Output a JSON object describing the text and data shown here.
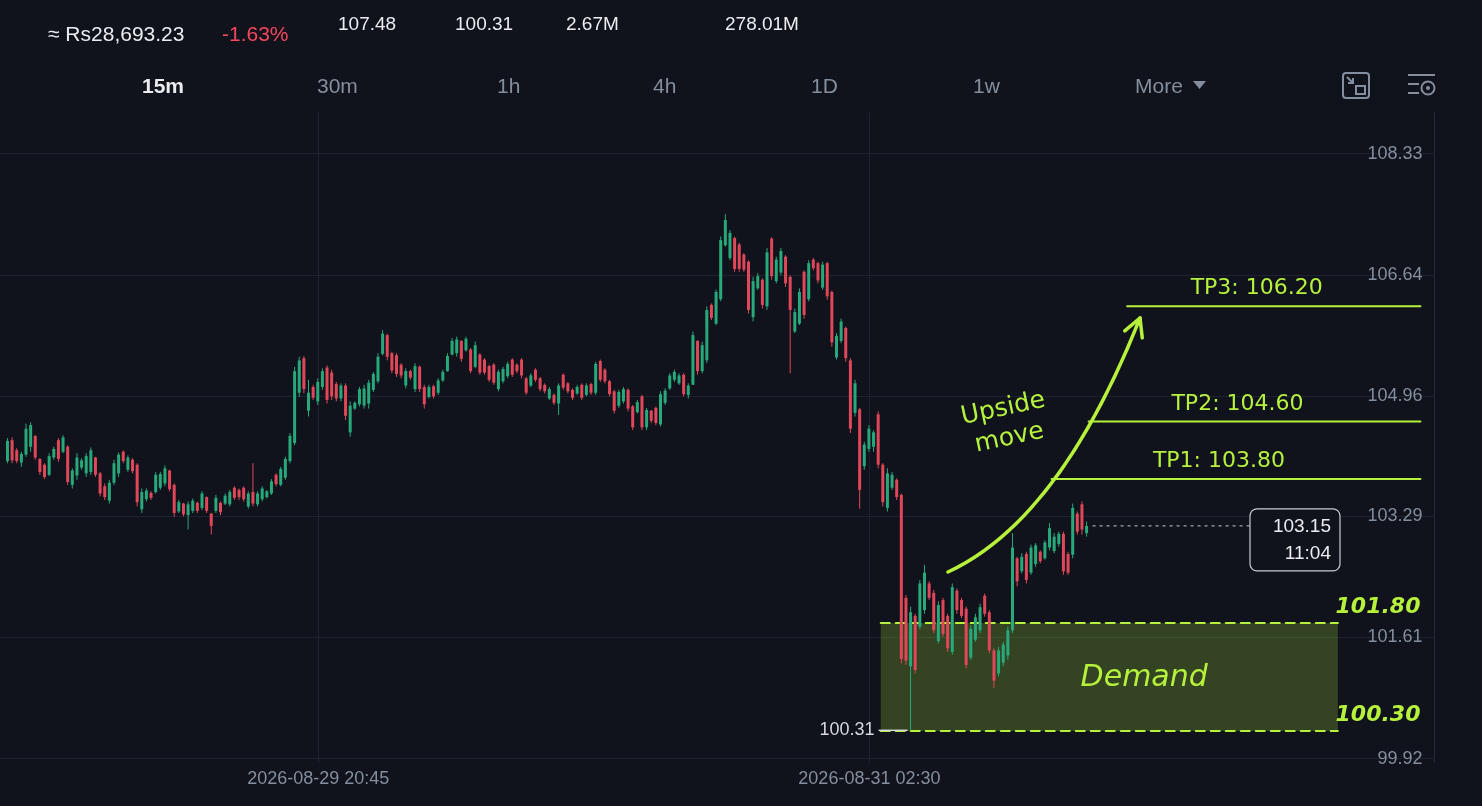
{
  "chart_data": {
    "type": "candlestick",
    "x": [
      "2026-08-29T04:00",
      "2026-08-29T04:15",
      "2026-08-29T04:30",
      "2026-08-29T04:45",
      "2026-08-29T05:00",
      "2026-08-29T05:15",
      "2026-08-29T05:30",
      "2026-08-29T05:45",
      "2026-08-29T06:00",
      "2026-08-29T06:15",
      "2026-08-29T06:30",
      "2026-08-29T06:45",
      "2026-08-29T07:00",
      "2026-08-29T07:15",
      "2026-08-29T07:30",
      "2026-08-29T07:45",
      "2026-08-29T08:00",
      "2026-08-29T08:15",
      "2026-08-29T08:30",
      "2026-08-29T08:45",
      "2026-08-29T09:00",
      "2026-08-29T09:15",
      "2026-08-29T09:30",
      "2026-08-29T09:45",
      "2026-08-29T10:00",
      "2026-08-29T10:15",
      "2026-08-29T10:30",
      "2026-08-29T10:45",
      "2026-08-29T11:00",
      "2026-08-29T11:15",
      "2026-08-29T11:30",
      "2026-08-29T11:45",
      "2026-08-29T12:00",
      "2026-08-29T12:15",
      "2026-08-29T12:30",
      "2026-08-29T12:45",
      "2026-08-29T13:00",
      "2026-08-29T13:15",
      "2026-08-29T13:30",
      "2026-08-29T13:45",
      "2026-08-29T14:00",
      "2026-08-29T14:15",
      "2026-08-29T14:30",
      "2026-08-29T14:45",
      "2026-08-29T15:00",
      "2026-08-29T15:15",
      "2026-08-29T15:30",
      "2026-08-29T15:45",
      "2026-08-29T16:00",
      "2026-08-29T16:15",
      "2026-08-29T16:30",
      "2026-08-29T16:45",
      "2026-08-29T17:00",
      "2026-08-29T17:15",
      "2026-08-29T17:30",
      "2026-08-29T17:45",
      "2026-08-29T18:00",
      "2026-08-29T18:15",
      "2026-08-29T18:30",
      "2026-08-29T18:45",
      "2026-08-29T19:00",
      "2026-08-29T19:15",
      "2026-08-29T19:30",
      "2026-08-29T19:45",
      "2026-08-29T20:00",
      "2026-08-29T20:15",
      "2026-08-29T20:30",
      "2026-08-29T20:45",
      "2026-08-29T21:00",
      "2026-08-29T21:15",
      "2026-08-29T21:30",
      "2026-08-29T21:45",
      "2026-08-29T22:00",
      "2026-08-29T22:15",
      "2026-08-29T22:30",
      "2026-08-29T22:45",
      "2026-08-29T23:00",
      "2026-08-29T23:15",
      "2026-08-29T23:30",
      "2026-08-29T23:45",
      "2026-08-30T00:00",
      "2026-08-30T00:15",
      "2026-08-30T00:30",
      "2026-08-30T00:45",
      "2026-08-30T01:00",
      "2026-08-30T01:15",
      "2026-08-30T01:30",
      "2026-08-30T01:45",
      "2026-08-30T02:00",
      "2026-08-30T02:15",
      "2026-08-30T02:30",
      "2026-08-30T02:45",
      "2026-08-30T03:00",
      "2026-08-30T03:15",
      "2026-08-30T03:30",
      "2026-08-30T03:45",
      "2026-08-30T04:00",
      "2026-08-30T04:15",
      "2026-08-30T04:30",
      "2026-08-30T04:45",
      "2026-08-30T05:00",
      "2026-08-30T05:15",
      "2026-08-30T05:30",
      "2026-08-30T05:45",
      "2026-08-30T06:00",
      "2026-08-30T06:15",
      "2026-08-30T06:30",
      "2026-08-30T06:45",
      "2026-08-30T07:00",
      "2026-08-30T07:15",
      "2026-08-30T07:30",
      "2026-08-30T07:45",
      "2026-08-30T08:00",
      "2026-08-30T08:15",
      "2026-08-30T08:30",
      "2026-08-30T08:45",
      "2026-08-30T09:00",
      "2026-08-30T09:15",
      "2026-08-30T09:30",
      "2026-08-30T09:45",
      "2026-08-30T10:00",
      "2026-08-30T10:15",
      "2026-08-30T10:30",
      "2026-08-30T10:45",
      "2026-08-30T11:00",
      "2026-08-30T11:15",
      "2026-08-30T11:30",
      "2026-08-30T11:45",
      "2026-08-30T12:00",
      "2026-08-30T12:15",
      "2026-08-30T12:30",
      "2026-08-30T12:45",
      "2026-08-30T13:00",
      "2026-08-30T13:15",
      "2026-08-30T13:30",
      "2026-08-30T13:45",
      "2026-08-30T14:00",
      "2026-08-30T14:15",
      "2026-08-30T14:30",
      "2026-08-30T14:45",
      "2026-08-30T15:00",
      "2026-08-30T15:15",
      "2026-08-30T15:30",
      "2026-08-30T15:45",
      "2026-08-30T16:00",
      "2026-08-30T16:15",
      "2026-08-30T16:30",
      "2026-08-30T16:45",
      "2026-08-30T17:00",
      "2026-08-30T17:15",
      "2026-08-30T17:30",
      "2026-08-30T17:45",
      "2026-08-30T18:00",
      "2026-08-30T18:15",
      "2026-08-30T18:30",
      "2026-08-30T18:45",
      "2026-08-30T19:00",
      "2026-08-30T19:15",
      "2026-08-30T19:30",
      "2026-08-30T19:45",
      "2026-08-30T20:00",
      "2026-08-30T20:15",
      "2026-08-30T20:30",
      "2026-08-30T20:45",
      "2026-08-30T21:00",
      "2026-08-30T21:15",
      "2026-08-30T21:30",
      "2026-08-30T21:45",
      "2026-08-30T22:00",
      "2026-08-30T22:15",
      "2026-08-30T22:30",
      "2026-08-30T22:45",
      "2026-08-30T23:00",
      "2026-08-30T23:15",
      "2026-08-30T23:30",
      "2026-08-30T23:45",
      "2026-08-31T00:00",
      "2026-08-31T00:15",
      "2026-08-31T00:30",
      "2026-08-31T00:45",
      "2026-08-31T01:00",
      "2026-08-31T01:15",
      "2026-08-31T01:30",
      "2026-08-31T01:45",
      "2026-08-31T02:00",
      "2026-08-31T02:15",
      "2026-08-31T02:30",
      "2026-08-31T02:45",
      "2026-08-31T03:00",
      "2026-08-31T03:15",
      "2026-08-31T03:30",
      "2026-08-31T03:45",
      "2026-08-31T04:00",
      "2026-08-31T04:15",
      "2026-08-31T04:30",
      "2026-08-31T04:45",
      "2026-08-31T05:00",
      "2026-08-31T05:15",
      "2026-08-31T05:30",
      "2026-08-31T05:45",
      "2026-08-31T06:00",
      "2026-08-31T06:15",
      "2026-08-31T06:30",
      "2026-08-31T06:45",
      "2026-08-31T07:00",
      "2026-08-31T07:15",
      "2026-08-31T07:30",
      "2026-08-31T07:45",
      "2026-08-31T08:00",
      "2026-08-31T08:15",
      "2026-08-31T08:30",
      "2026-08-31T08:45",
      "2026-08-31T09:00",
      "2026-08-31T09:15",
      "2026-08-31T09:30",
      "2026-08-31T09:45",
      "2026-08-31T10:00",
      "2026-08-31T10:15",
      "2026-08-31T10:30",
      "2026-08-31T10:45",
      "2026-08-31T11:00",
      "2026-08-31T11:15",
      "2026-08-31T11:30",
      "2026-08-31T11:45",
      "2026-08-31T12:00",
      "2026-08-31T12:15",
      "2026-08-31T12:30",
      "2026-08-31T12:45",
      "2026-08-31T13:00",
      "2026-08-31T13:15",
      "2026-08-31T13:30",
      "2026-08-31T13:45",
      "2026-08-31T14:00",
      "2026-08-31T14:15"
    ],
    "ohlc": [
      [
        104.05,
        104.37,
        104.02,
        104.33
      ],
      [
        104.34,
        104.38,
        104.02,
        104.06
      ],
      [
        104.2,
        104.23,
        104.02,
        104.05
      ],
      [
        104.03,
        104.18,
        103.97,
        104.15
      ],
      [
        104.14,
        104.57,
        104.11,
        104.5
      ],
      [
        104.25,
        104.59,
        104.18,
        104.55
      ],
      [
        104.4,
        104.41,
        104.07,
        104.1
      ],
      [
        104.08,
        104.09,
        103.86,
        103.9
      ],
      [
        104.0,
        104.02,
        103.8,
        103.83
      ],
      [
        103.86,
        104.16,
        103.84,
        104.12
      ],
      [
        104.1,
        104.25,
        104.07,
        104.22
      ],
      [
        104.34,
        104.37,
        104.04,
        104.08
      ],
      [
        104.18,
        104.41,
        104.16,
        104.38
      ],
      [
        104.25,
        104.27,
        103.72,
        103.76
      ],
      [
        103.72,
        103.95,
        103.67,
        103.92
      ],
      [
        103.85,
        104.16,
        103.79,
        104.1
      ],
      [
        103.96,
        104.09,
        103.93,
        104.06
      ],
      [
        103.88,
        104.16,
        103.83,
        104.12
      ],
      [
        103.9,
        104.24,
        103.86,
        104.2
      ],
      [
        104.1,
        104.11,
        103.83,
        103.86
      ],
      [
        103.88,
        103.9,
        103.56,
        103.6
      ],
      [
        103.7,
        103.74,
        103.51,
        103.55
      ],
      [
        103.5,
        103.79,
        103.46,
        103.75
      ],
      [
        103.75,
        104.07,
        103.72,
        104.02
      ],
      [
        103.88,
        104.17,
        103.83,
        104.14
      ],
      [
        104.18,
        104.2,
        104.02,
        104.05
      ],
      [
        103.93,
        104.13,
        103.9,
        104.1
      ],
      [
        104.07,
        104.09,
        103.88,
        103.91
      ],
      [
        104.0,
        104.02,
        103.42,
        103.48
      ],
      [
        103.38,
        103.67,
        103.33,
        103.62
      ],
      [
        103.52,
        103.67,
        103.49,
        103.64
      ],
      [
        103.61,
        103.63,
        103.51,
        103.54
      ],
      [
        103.62,
        103.9,
        103.6,
        103.86
      ],
      [
        103.68,
        103.9,
        103.65,
        103.87
      ],
      [
        103.74,
        103.99,
        103.7,
        103.95
      ],
      [
        103.92,
        103.93,
        103.63,
        103.66
      ],
      [
        103.72,
        103.74,
        103.28,
        103.33
      ],
      [
        103.35,
        103.51,
        103.33,
        103.48
      ],
      [
        103.46,
        103.47,
        103.28,
        103.31
      ],
      [
        103.3,
        103.49,
        103.1,
        103.45
      ],
      [
        103.36,
        103.53,
        103.33,
        103.5
      ],
      [
        103.47,
        103.49,
        103.33,
        103.36
      ],
      [
        103.4,
        103.63,
        103.37,
        103.6
      ],
      [
        103.55,
        103.56,
        103.33,
        103.36
      ],
      [
        103.32,
        103.33,
        103.03,
        103.15
      ],
      [
        103.36,
        103.58,
        103.33,
        103.54
      ],
      [
        103.47,
        103.49,
        103.3,
        103.34
      ],
      [
        103.46,
        103.6,
        103.44,
        103.57
      ],
      [
        103.45,
        103.65,
        103.42,
        103.62
      ],
      [
        103.68,
        103.7,
        103.51,
        103.54
      ],
      [
        103.65,
        103.67,
        103.51,
        103.55
      ],
      [
        103.68,
        103.7,
        103.49,
        103.52
      ],
      [
        103.42,
        103.63,
        103.39,
        103.6
      ],
      [
        103.62,
        104.02,
        103.42,
        103.46
      ],
      [
        103.45,
        103.63,
        103.42,
        103.6
      ],
      [
        103.52,
        103.7,
        103.49,
        103.67
      ],
      [
        103.55,
        103.65,
        103.53,
        103.63
      ],
      [
        103.6,
        103.8,
        103.58,
        103.77
      ],
      [
        103.86,
        103.88,
        103.7,
        103.73
      ],
      [
        103.72,
        103.97,
        103.7,
        103.94
      ],
      [
        103.82,
        104.11,
        103.79,
        104.08
      ],
      [
        104.05,
        104.44,
        104.02,
        104.4
      ],
      [
        104.3,
        105.36,
        104.27,
        105.3
      ],
      [
        105.0,
        105.5,
        104.94,
        105.45
      ],
      [
        105.48,
        105.51,
        104.99,
        105.05
      ],
      [
        104.75,
        105.18,
        104.67,
        105.0
      ],
      [
        105.08,
        105.11,
        104.9,
        104.93
      ],
      [
        104.88,
        105.2,
        104.83,
        105.15
      ],
      [
        105.08,
        105.34,
        105.04,
        105.3
      ],
      [
        105.35,
        105.38,
        104.85,
        104.9
      ],
      [
        105.28,
        105.32,
        104.9,
        104.95
      ],
      [
        105.12,
        105.15,
        104.88,
        104.92
      ],
      [
        104.92,
        105.13,
        104.88,
        105.1
      ],
      [
        105.1,
        105.13,
        104.62,
        104.68
      ],
      [
        104.45,
        104.88,
        104.39,
        104.82
      ],
      [
        104.78,
        104.88,
        104.76,
        104.86
      ],
      [
        104.84,
        105.08,
        104.81,
        105.05
      ],
      [
        104.82,
        105.11,
        104.78,
        105.06
      ],
      [
        104.85,
        105.18,
        104.78,
        105.14
      ],
      [
        105.04,
        105.29,
        105.01,
        105.26
      ],
      [
        105.16,
        105.55,
        105.13,
        105.5
      ],
      [
        105.54,
        105.87,
        105.52,
        105.82
      ],
      [
        105.8,
        105.82,
        105.45,
        105.5
      ],
      [
        105.55,
        105.57,
        105.27,
        105.31
      ],
      [
        105.52,
        105.55,
        105.22,
        105.26
      ],
      [
        105.39,
        105.41,
        105.2,
        105.24
      ],
      [
        105.1,
        105.34,
        105.06,
        105.3
      ],
      [
        105.3,
        105.32,
        105.18,
        105.21
      ],
      [
        105.05,
        105.41,
        105.01,
        105.37
      ],
      [
        105.36,
        105.38,
        105.01,
        105.05
      ],
      [
        105.08,
        105.11,
        104.78,
        104.84
      ],
      [
        104.94,
        105.11,
        104.92,
        105.08
      ],
      [
        105.09,
        105.11,
        104.92,
        104.95
      ],
      [
        105.0,
        105.2,
        104.97,
        105.17
      ],
      [
        105.17,
        105.32,
        105.15,
        105.29
      ],
      [
        105.3,
        105.55,
        105.29,
        105.51
      ],
      [
        105.53,
        105.76,
        105.52,
        105.72
      ],
      [
        105.55,
        105.78,
        105.5,
        105.74
      ],
      [
        105.72,
        105.73,
        105.43,
        105.47
      ],
      [
        105.59,
        105.78,
        105.57,
        105.75
      ],
      [
        105.6,
        105.62,
        105.27,
        105.3
      ],
      [
        105.36,
        105.71,
        105.34,
        105.66
      ],
      [
        105.53,
        105.55,
        105.25,
        105.28
      ],
      [
        105.46,
        105.48,
        105.25,
        105.28
      ],
      [
        105.37,
        105.39,
        105.15,
        105.18
      ],
      [
        105.39,
        105.41,
        105.11,
        105.14
      ],
      [
        105.05,
        105.32,
        105.02,
        105.29
      ],
      [
        105.16,
        105.36,
        105.13,
        105.33
      ],
      [
        105.23,
        105.43,
        105.2,
        105.4
      ],
      [
        105.46,
        105.48,
        105.22,
        105.25
      ],
      [
        105.39,
        105.41,
        105.27,
        105.3
      ],
      [
        105.46,
        105.48,
        105.2,
        105.24
      ],
      [
        105.2,
        105.22,
        104.97,
        105.0
      ],
      [
        105.1,
        105.27,
        105.08,
        105.24
      ],
      [
        105.32,
        105.34,
        105.15,
        105.18
      ],
      [
        105.2,
        105.22,
        105.02,
        105.05
      ],
      [
        105.11,
        105.13,
        104.99,
        105.02
      ],
      [
        104.92,
        105.08,
        104.9,
        105.05
      ],
      [
        104.97,
        104.99,
        104.83,
        104.86
      ],
      [
        104.85,
        105.13,
        104.69,
        105.1
      ],
      [
        105.25,
        105.27,
        105.04,
        105.07
      ],
      [
        105.13,
        105.15,
        104.99,
        105.02
      ],
      [
        105.04,
        105.06,
        104.9,
        104.93
      ],
      [
        104.99,
        105.11,
        104.97,
        105.08
      ],
      [
        105.11,
        105.13,
        104.9,
        104.93
      ],
      [
        104.97,
        105.13,
        104.95,
        105.1
      ],
      [
        105.12,
        105.14,
        104.97,
        105.0
      ],
      [
        105.0,
        105.43,
        104.97,
        105.4
      ],
      [
        105.44,
        105.46,
        105.15,
        105.18
      ],
      [
        105.32,
        105.34,
        105.13,
        105.16
      ],
      [
        105.16,
        105.18,
        104.95,
        104.98
      ],
      [
        105.02,
        105.04,
        104.71,
        104.75
      ],
      [
        104.82,
        105.04,
        104.79,
        105.01
      ],
      [
        104.88,
        105.08,
        104.85,
        105.05
      ],
      [
        105.04,
        105.06,
        104.74,
        104.78
      ],
      [
        104.81,
        104.83,
        104.48,
        104.52
      ],
      [
        104.73,
        104.9,
        104.71,
        104.87
      ],
      [
        104.95,
        104.97,
        104.48,
        104.52
      ],
      [
        104.52,
        104.79,
        104.48,
        104.76
      ],
      [
        104.75,
        104.76,
        104.58,
        104.61
      ],
      [
        104.79,
        104.81,
        104.55,
        104.58
      ],
      [
        104.56,
        105.02,
        104.53,
        104.98
      ],
      [
        104.86,
        105.06,
        104.83,
        105.03
      ],
      [
        105.06,
        105.27,
        105.04,
        105.24
      ],
      [
        105.18,
        105.32,
        105.15,
        105.29
      ],
      [
        105.13,
        105.27,
        105.11,
        105.24
      ],
      [
        105.25,
        105.27,
        104.95,
        104.98
      ],
      [
        104.97,
        105.13,
        104.92,
        105.1
      ],
      [
        105.11,
        105.85,
        105.11,
        105.8
      ],
      [
        105.72,
        105.73,
        105.25,
        105.3
      ],
      [
        105.3,
        105.71,
        105.27,
        105.66
      ],
      [
        105.45,
        106.2,
        105.41,
        106.15
      ],
      [
        106.22,
        106.24,
        106.01,
        106.04
      ],
      [
        105.96,
        106.43,
        105.94,
        106.4
      ],
      [
        106.3,
        107.17,
        106.27,
        107.12
      ],
      [
        107.05,
        107.48,
        107.03,
        107.4
      ],
      [
        106.87,
        107.26,
        106.84,
        107.22
      ],
      [
        107.15,
        107.17,
        106.68,
        106.72
      ],
      [
        107.06,
        107.08,
        106.68,
        106.72
      ],
      [
        106.92,
        106.94,
        106.68,
        106.71
      ],
      [
        106.82,
        106.84,
        106.1,
        106.15
      ],
      [
        106.05,
        106.61,
        105.99,
        106.55
      ],
      [
        106.45,
        106.66,
        106.43,
        106.62
      ],
      [
        106.57,
        106.59,
        106.17,
        106.22
      ],
      [
        106.2,
        107.01,
        106.15,
        106.95
      ],
      [
        107.14,
        107.16,
        106.57,
        106.62
      ],
      [
        106.55,
        106.89,
        106.52,
        106.85
      ],
      [
        106.67,
        107.01,
        106.63,
        106.97
      ],
      [
        106.89,
        106.91,
        106.47,
        106.52
      ],
      [
        106.61,
        106.63,
        105.27,
        106.15
      ],
      [
        105.85,
        106.17,
        105.83,
        106.12
      ],
      [
        105.96,
        106.45,
        105.94,
        106.4
      ],
      [
        106.68,
        106.7,
        106.03,
        106.08
      ],
      [
        106.3,
        106.84,
        106.27,
        106.8
      ],
      [
        106.85,
        106.87,
        106.7,
        106.73
      ],
      [
        106.8,
        106.82,
        106.52,
        106.56
      ],
      [
        106.46,
        106.82,
        106.43,
        106.78
      ],
      [
        106.8,
        106.82,
        106.29,
        106.34
      ],
      [
        106.4,
        106.42,
        105.64,
        105.7
      ],
      [
        105.49,
        105.83,
        105.46,
        105.79
      ],
      [
        105.72,
        106.03,
        105.69,
        105.99
      ],
      [
        105.9,
        105.92,
        105.43,
        105.48
      ],
      [
        105.45,
        105.48,
        104.44,
        104.5
      ],
      [
        104.72,
        105.18,
        104.67,
        105.13
      ],
      [
        104.77,
        104.79,
        103.39,
        103.65
      ],
      [
        103.98,
        104.32,
        103.93,
        104.28
      ],
      [
        104.22,
        104.55,
        104.18,
        104.5
      ],
      [
        104.25,
        104.48,
        104.18,
        104.45
      ],
      [
        104.7,
        104.74,
        103.95,
        104.0
      ],
      [
        104.0,
        104.02,
        103.42,
        103.48
      ],
      [
        103.4,
        103.95,
        103.35,
        103.88
      ],
      [
        103.68,
        103.9,
        103.65,
        103.86
      ],
      [
        103.79,
        103.81,
        103.51,
        103.55
      ],
      [
        103.58,
        103.6,
        101.24,
        101.3
      ],
      [
        102.15,
        102.19,
        101.22,
        101.28
      ],
      [
        101.2,
        102.03,
        100.31,
        101.95
      ],
      [
        101.9,
        101.93,
        101.1,
        101.15
      ],
      [
        101.75,
        102.4,
        101.71,
        102.35
      ],
      [
        101.98,
        102.61,
        101.93,
        102.5
      ],
      [
        102.35,
        102.38,
        102.12,
        102.15
      ],
      [
        102.22,
        102.26,
        101.66,
        101.7
      ],
      [
        101.55,
        102.1,
        101.52,
        102.05
      ],
      [
        102.12,
        102.15,
        101.61,
        101.65
      ],
      [
        101.9,
        101.93,
        101.4,
        101.45
      ],
      [
        101.4,
        102.35,
        101.36,
        102.3
      ],
      [
        102.25,
        102.28,
        101.93,
        101.98
      ],
      [
        102.12,
        102.15,
        101.87,
        101.9
      ],
      [
        102.0,
        102.03,
        101.17,
        101.22
      ],
      [
        101.32,
        101.77,
        101.29,
        101.72
      ],
      [
        101.57,
        101.93,
        101.54,
        101.88
      ],
      [
        101.7,
        102.07,
        101.66,
        102.02
      ],
      [
        102.18,
        102.21,
        101.89,
        101.93
      ],
      [
        101.95,
        101.98,
        101.38,
        101.42
      ],
      [
        101.42,
        101.45,
        100.9,
        101.0
      ],
      [
        101.1,
        101.47,
        101.06,
        101.42
      ],
      [
        101.25,
        101.54,
        101.2,
        101.5
      ],
      [
        101.35,
        101.75,
        101.29,
        101.7
      ],
      [
        101.7,
        103.05,
        101.66,
        102.85
      ],
      [
        102.7,
        102.72,
        102.31,
        102.38
      ],
      [
        102.52,
        102.77,
        102.49,
        102.72
      ],
      [
        102.76,
        102.79,
        102.35,
        102.4
      ],
      [
        102.5,
        102.89,
        102.47,
        102.85
      ],
      [
        102.62,
        102.91,
        102.58,
        102.88
      ],
      [
        102.79,
        102.81,
        102.63,
        102.66
      ],
      [
        102.7,
        102.95,
        102.68,
        102.92
      ],
      [
        102.85,
        103.19,
        102.81,
        103.12
      ],
      [
        102.8,
        103.05,
        102.77,
        103.0
      ],
      [
        102.9,
        103.07,
        102.86,
        103.04
      ],
      [
        103.04,
        103.07,
        102.47,
        102.52
      ],
      [
        102.76,
        102.79,
        102.47,
        102.5
      ],
      [
        102.75,
        103.46,
        102.7,
        103.4
      ],
      [
        103.32,
        103.35,
        103.03,
        103.07
      ],
      [
        103.45,
        103.49,
        103.03,
        103.1
      ],
      [
        103.05,
        103.21,
        103.0,
        103.15
      ]
    ],
    "colors": [
      "#27a97b",
      "#e0475a",
      "#e0475a",
      "#27a97b",
      "#27a97b",
      "#27a97b",
      "#e0475a",
      "#e0475a",
      "#e0475a",
      "#27a97b",
      "#27a97b",
      "#e0475a",
      "#27a97b",
      "#e0475a",
      "#27a97b",
      "#27a97b",
      "#27a97b",
      "#27a97b",
      "#27a97b",
      "#e0475a",
      "#e0475a",
      "#e0475a",
      "#27a97b",
      "#27a97b",
      "#27a97b",
      "#e0475a",
      "#27a97b",
      "#e0475a",
      "#e0475a",
      "#27a97b",
      "#27a97b",
      "#e0475a",
      "#27a97b",
      "#27a97b",
      "#27a97b",
      "#e0475a",
      "#e0475a",
      "#27a97b",
      "#e0475a",
      "#27a97b",
      "#27a97b",
      "#e0475a",
      "#27a97b",
      "#e0475a",
      "#e0475a",
      "#27a97b",
      "#e0475a",
      "#27a97b",
      "#27a97b",
      "#e0475a",
      "#e0475a",
      "#e0475a",
      "#27a97b",
      "#e0475a",
      "#27a97b",
      "#27a97b",
      "#27a97b",
      "#27a97b",
      "#e0475a",
      "#27a97b",
      "#27a97b",
      "#27a97b",
      "#27a97b",
      "#27a97b",
      "#e0475a",
      "#27a97b",
      "#e0475a",
      "#27a97b",
      "#27a97b",
      "#e0475a",
      "#e0475a",
      "#e0475a",
      "#27a97b",
      "#e0475a",
      "#27a97b",
      "#27a97b",
      "#27a97b",
      "#27a97b",
      "#27a97b",
      "#27a97b",
      "#27a97b",
      "#27a97b",
      "#e0475a",
      "#e0475a",
      "#e0475a",
      "#e0475a",
      "#27a97b",
      "#e0475a",
      "#27a97b",
      "#e0475a",
      "#e0475a",
      "#27a97b",
      "#e0475a",
      "#27a97b",
      "#27a97b",
      "#27a97b",
      "#27a97b",
      "#27a97b",
      "#e0475a",
      "#27a97b",
      "#e0475a",
      "#27a97b",
      "#e0475a",
      "#e0475a",
      "#e0475a",
      "#e0475a",
      "#27a97b",
      "#27a97b",
      "#27a97b",
      "#e0475a",
      "#e0475a",
      "#e0475a",
      "#e0475a",
      "#27a97b",
      "#e0475a",
      "#e0475a",
      "#e0475a",
      "#27a97b",
      "#e0475a",
      "#27a97b",
      "#e0475a",
      "#e0475a",
      "#e0475a",
      "#27a97b",
      "#e0475a",
      "#27a97b",
      "#e0475a",
      "#27a97b",
      "#e0475a",
      "#e0475a",
      "#e0475a",
      "#e0475a",
      "#27a97b",
      "#27a97b",
      "#e0475a",
      "#e0475a",
      "#27a97b",
      "#e0475a",
      "#27a97b",
      "#e0475a",
      "#e0475a",
      "#27a97b",
      "#27a97b",
      "#27a97b",
      "#27a97b",
      "#27a97b",
      "#e0475a",
      "#27a97b",
      "#27a97b",
      "#e0475a",
      "#27a97b",
      "#27a97b",
      "#e0475a",
      "#27a97b",
      "#27a97b",
      "#27a97b",
      "#27a97b",
      "#e0475a",
      "#e0475a",
      "#e0475a",
      "#e0475a",
      "#27a97b",
      "#27a97b",
      "#e0475a",
      "#27a97b",
      "#e0475a",
      "#27a97b",
      "#27a97b",
      "#e0475a",
      "#e0475a",
      "#27a97b",
      "#27a97b",
      "#e0475a",
      "#27a97b",
      "#e0475a",
      "#e0475a",
      "#27a97b",
      "#e0475a",
      "#e0475a",
      "#27a97b",
      "#27a97b",
      "#e0475a",
      "#e0475a",
      "#27a97b",
      "#e0475a",
      "#27a97b",
      "#27a97b",
      "#27a97b",
      "#e0475a",
      "#e0475a",
      "#27a97b",
      "#27a97b",
      "#e0475a",
      "#e0475a",
      "#e0475a",
      "#27a97b",
      "#e0475a",
      "#27a97b",
      "#27a97b",
      "#e0475a",
      "#e0475a",
      "#27a97b",
      "#e0475a",
      "#e0475a",
      "#27a97b",
      "#e0475a",
      "#e0475a",
      "#e0475a",
      "#27a97b",
      "#27a97b",
      "#27a97b",
      "#e0475a",
      "#e0475a",
      "#e0475a",
      "#27a97b",
      "#27a97b",
      "#27a97b",
      "#27a97b",
      "#e0475a",
      "#27a97b",
      "#e0475a",
      "#27a97b",
      "#27a97b",
      "#e0475a",
      "#27a97b",
      "#27a97b",
      "#27a97b",
      "#27a97b",
      "#e0475a",
      "#e0475a",
      "#27a97b",
      "#e0475a",
      "#e0475a",
      "#27a97b"
    ],
    "xlim": [
      "2026-08-29T03:52",
      "2026-09-01T08:44"
    ],
    "xticks": [
      {
        "value": "2026-08-29T20:45",
        "label": "2026-08-29 20:45"
      },
      {
        "value": "2026-08-31T02:30",
        "label": "2026-08-31 02:30"
      }
    ],
    "ylim": [
      99.87,
      108.9
    ],
    "yticks": [
      99.92,
      101.61,
      103.29,
      104.96,
      106.64,
      108.33
    ],
    "grid": true,
    "ref_lines": [
      {
        "axis": "y",
        "value": 106.2,
        "label": "TP3: 106.20",
        "color": "#b6f23c",
        "line_style": "solid"
      },
      {
        "axis": "y",
        "value": 104.6,
        "label": "TP2: 104.60",
        "color": "#b6f23c",
        "line_style": "solid"
      },
      {
        "axis": "y",
        "value": 103.8,
        "label": "TP1: 103.80",
        "color": "#b6f23c",
        "line_style": "solid"
      },
      {
        "axis": "y",
        "value": 103.15,
        "label": "103.15",
        "color": "#c9ccd3",
        "line_style": "dotted"
      },
      {
        "axis": "y",
        "value": 101.8,
        "label": "101.80",
        "color": "#b6f23c",
        "line_style": "dashed"
      },
      {
        "axis": "y",
        "value": 100.3,
        "label": "100.30",
        "color": "#b6f23c",
        "line_style": "dashed"
      }
    ],
    "bands": [
      {
        "axis": "y",
        "from": 100.3,
        "to": 101.8,
        "label": "Demand",
        "color": "#b6f23c"
      }
    ],
    "annotations": [
      "≈ Rs28,693.23",
      "-1.63%",
      "107.48",
      "100.31",
      "2.67M",
      "278.01M",
      "15m",
      "30m",
      "1h",
      "4h",
      "1D",
      "1w",
      "More",
      "Upside move",
      {
        "text": "100.31",
        "x": "2026-08-31T04:45",
        "y": 100.31
      },
      "11:04"
    ]
  }
}
